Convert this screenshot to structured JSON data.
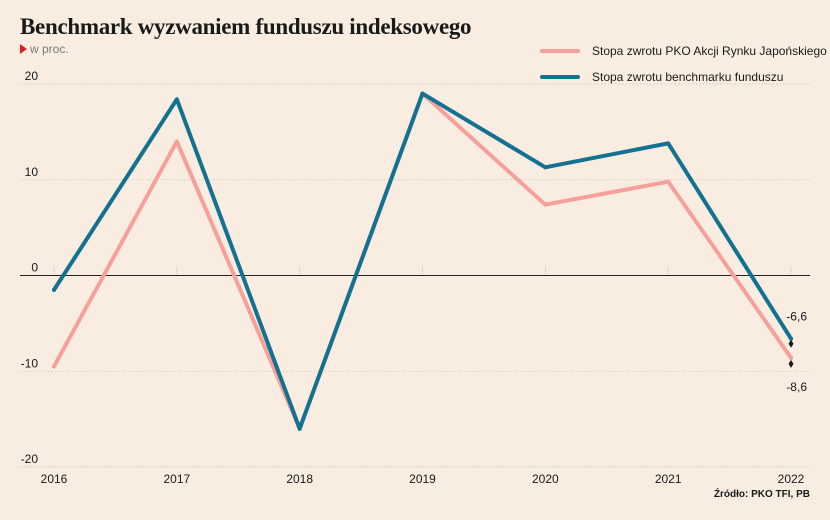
{
  "title": "Benchmark wyzwaniem funduszu indeksowego",
  "unit_label": "w proc.",
  "source": "Źródło: PKO TFI, PB",
  "chart_data": {
    "type": "line",
    "x": [
      "2016",
      "2017",
      "2018",
      "2019",
      "2020",
      "2021",
      "2022"
    ],
    "yticks": [
      "20",
      "10",
      "0",
      "-10",
      "-20"
    ],
    "ylim": [
      -20,
      20
    ],
    "series": [
      {
        "name": "Stopa zwrotu PKO Akcji Rynku Japońskiego",
        "color": "#f5a09a",
        "values": [
          -9.5,
          14.0,
          -16.0,
          19.0,
          7.4,
          9.8,
          -8.6
        ]
      },
      {
        "name": "Stopa zwrotu benchmarku funduszu",
        "color": "#14718f",
        "values": [
          -1.5,
          18.4,
          -16.0,
          19.0,
          11.3,
          13.8,
          -6.6
        ]
      }
    ],
    "end_labels": [
      "-6,6",
      "-8,6"
    ],
    "grid": "horizontal",
    "legend": "top-right"
  }
}
